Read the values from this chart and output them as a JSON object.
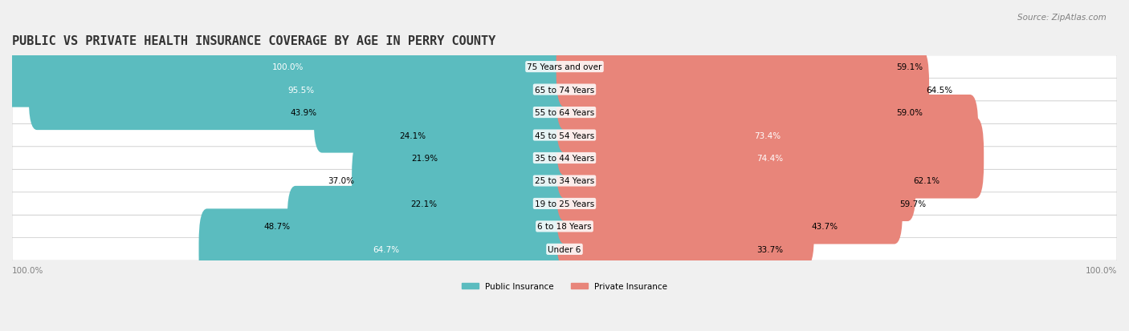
{
  "title": "PUBLIC VS PRIVATE HEALTH INSURANCE COVERAGE BY AGE IN PERRY COUNTY",
  "source": "Source: ZipAtlas.com",
  "categories": [
    "Under 6",
    "6 to 18 Years",
    "19 to 25 Years",
    "25 to 34 Years",
    "35 to 44 Years",
    "45 to 54 Years",
    "55 to 64 Years",
    "65 to 74 Years",
    "75 Years and over"
  ],
  "public_values": [
    64.7,
    48.7,
    22.1,
    37.0,
    21.9,
    24.1,
    43.9,
    95.5,
    100.0
  ],
  "private_values": [
    33.7,
    43.7,
    59.7,
    62.1,
    74.4,
    73.4,
    59.0,
    64.5,
    59.1
  ],
  "public_color": "#5bbcbf",
  "private_color": "#e8857a",
  "background_color": "#f0f0f0",
  "bar_background": "#ffffff",
  "max_value": 100.0,
  "bar_height": 0.55,
  "title_fontsize": 11,
  "label_fontsize": 7.5,
  "source_fontsize": 7.5
}
